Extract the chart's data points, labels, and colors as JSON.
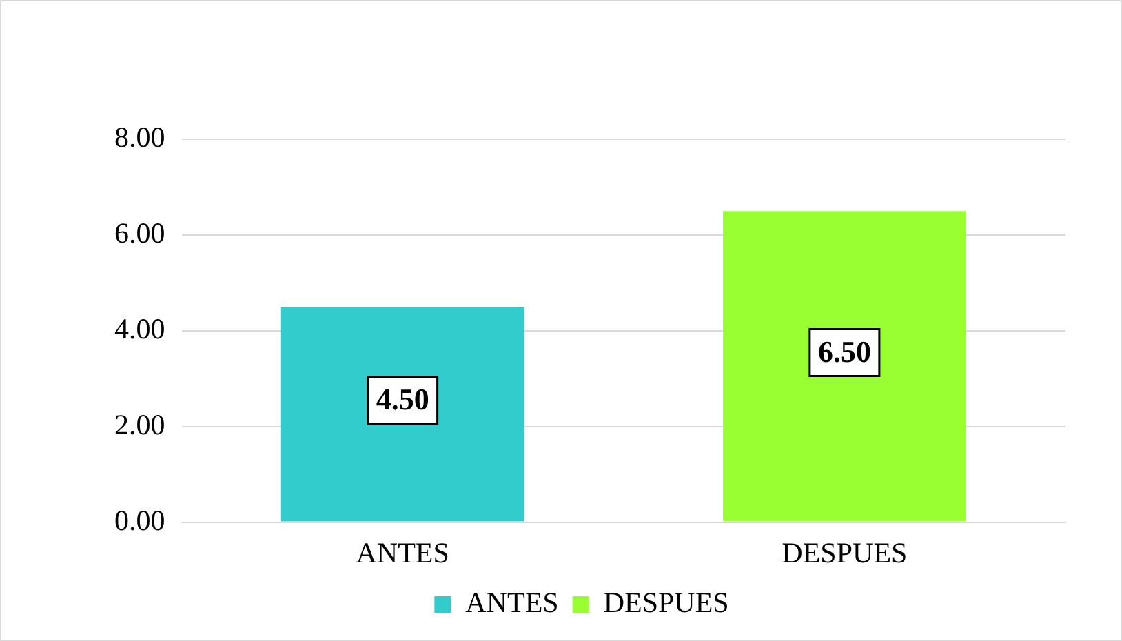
{
  "chart_data": {
    "type": "bar",
    "categories": [
      "ANTES",
      "DESPUES"
    ],
    "series": [
      {
        "name": "ANTES",
        "color": "#33cccc",
        "values": [
          4.5,
          null
        ],
        "value_labels": [
          "4.50",
          null
        ]
      },
      {
        "name": "DESPUES",
        "color": "#99ff33",
        "values": [
          null,
          6.5
        ],
        "value_labels": [
          null,
          "6.50"
        ]
      }
    ],
    "ylim": [
      0,
      8
    ],
    "yticks": [
      {
        "value": 0,
        "label": "0.00"
      },
      {
        "value": 2,
        "label": "2.00"
      },
      {
        "value": 4,
        "label": "4.00"
      },
      {
        "value": 6,
        "label": "6.00"
      },
      {
        "value": 8,
        "label": "8.00"
      }
    ],
    "grid": "y",
    "legend": "bottom"
  }
}
